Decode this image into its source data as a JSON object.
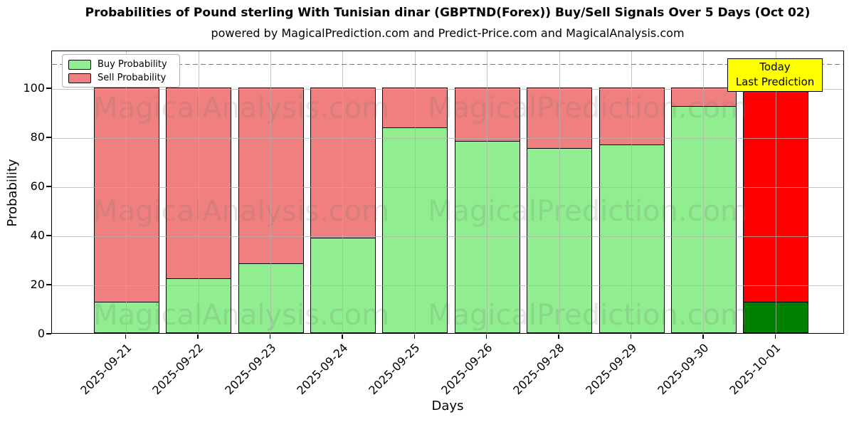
{
  "chart_data": {
    "type": "bar",
    "stacked": true,
    "title": "Probabilities of Pound sterling With Tunisian dinar (GBPTND(Forex)) Buy/Sell Signals Over 5 Days (Oct 02)",
    "subtitle": "powered by MagicalPrediction.com and Predict-Price.com and MagicalAnalysis.com",
    "xlabel": "Days",
    "ylabel": "Probability",
    "categories": [
      "2025-09-21",
      "2025-09-22",
      "2025-09-23",
      "2025-09-24",
      "2025-09-25",
      "2025-09-26",
      "2025-09-28",
      "2025-09-29",
      "2025-09-30",
      "2025-10-01"
    ],
    "series": [
      {
        "name": "Buy Probability",
        "color": "#90EE90",
        "values": [
          13,
          22.5,
          28.5,
          39,
          84,
          78.5,
          75.5,
          77,
          92.5,
          13
        ]
      },
      {
        "name": "Sell Probability",
        "color": "#F08080",
        "values": [
          87,
          77.5,
          71.5,
          61,
          16,
          21.5,
          24.5,
          23,
          7.5,
          87
        ]
      }
    ],
    "last_bar_colors": {
      "buy": "#008000",
      "sell": "#FF0000"
    },
    "ylim": [
      0,
      115.4
    ],
    "yticks": [
      0,
      20,
      40,
      60,
      80,
      100
    ],
    "grid": true,
    "dashed_line_y": 110,
    "legend_position": "upper left",
    "annotation": {
      "lines": [
        "Today",
        "Last Prediction"
      ],
      "bg_color": "#FFFF00",
      "border_color": "#000000"
    },
    "watermarks": [
      "MagicalAnalysis.com",
      "MagicalPrediction.com"
    ]
  }
}
